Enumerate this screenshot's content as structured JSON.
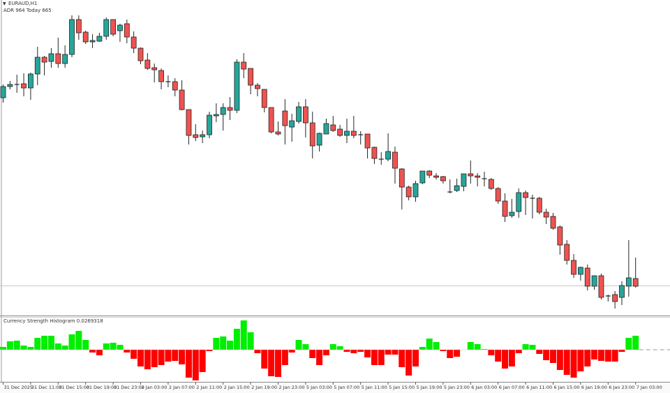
{
  "header": {
    "symbol": "EURAUD,H1",
    "adr_text": "ADR 964   Today 665"
  },
  "indicator": {
    "label": "Currency Strength Histogram 0.0269318"
  },
  "colors": {
    "bull": "#26a69a",
    "bear": "#ef5350",
    "outline": "#222222",
    "hist_pos": "#00ee00",
    "hist_neg": "#ff0000",
    "grid": "#c8c8c8"
  },
  "chart_data": {
    "type": "candlestick",
    "symbol": "EURAUD",
    "timeframe": "H1",
    "x_labels": [
      "31 Dec 2025",
      "31 Dec 11:00",
      "31 Dec 15:00",
      "31 Dec 19:00",
      "31 Dec 23:00",
      "2 Jan 03:00",
      "2 Jan 07:00",
      "2 Jan 11:00",
      "2 Jan 15:00",
      "2 Jan 19:00",
      "2 Jan 23:00",
      "5 Jan 03:00",
      "5 Jan 07:00",
      "5 Jan 11:00",
      "5 Jan 15:00",
      "5 Jan 19:00",
      "5 Jan 23:00",
      "6 Jan 03:00",
      "6 Jan 07:00",
      "6 Jan 11:00",
      "6 Jan 15:00",
      "6 Jan 19:00",
      "6 Jan 23:00",
      "7 Jan 03:00"
    ],
    "bars_per_label": 4,
    "price_units": "relative",
    "ohlc": [
      [
        320,
        339,
        313,
        336
      ],
      [
        336,
        344,
        332,
        339
      ],
      [
        339,
        353,
        327,
        339
      ],
      [
        340,
        355,
        322,
        334
      ],
      [
        334,
        356,
        317,
        354
      ],
      [
        354,
        393,
        338,
        378
      ],
      [
        378,
        380,
        352,
        371
      ],
      [
        372,
        391,
        363,
        383
      ],
      [
        383,
        406,
        363,
        369
      ],
      [
        369,
        395,
        363,
        382
      ],
      [
        382,
        438,
        378,
        432
      ],
      [
        432,
        438,
        403,
        413
      ],
      [
        414,
        416,
        397,
        400
      ],
      [
        400,
        411,
        391,
        402
      ],
      [
        401,
        413,
        400,
        408
      ],
      [
        408,
        435,
        403,
        432
      ],
      [
        432,
        432,
        408,
        411
      ],
      [
        416,
        426,
        400,
        424
      ],
      [
        426,
        432,
        398,
        407
      ],
      [
        407,
        415,
        384,
        391
      ],
      [
        391,
        392,
        368,
        373
      ],
      [
        374,
        384,
        360,
        362
      ],
      [
        363,
        369,
        342,
        360
      ],
      [
        359,
        362,
        332,
        343
      ],
      [
        343,
        352,
        335,
        343
      ],
      [
        343,
        348,
        322,
        331
      ],
      [
        331,
        345,
        302,
        303
      ],
      [
        303,
        303,
        253,
        266
      ],
      [
        267,
        282,
        258,
        263
      ],
      [
        264,
        273,
        255,
        267
      ],
      [
        267,
        300,
        262,
        295
      ],
      [
        294,
        312,
        285,
        296
      ],
      [
        296,
        312,
        273,
        306
      ],
      [
        306,
        321,
        288,
        302
      ],
      [
        302,
        375,
        298,
        371
      ],
      [
        371,
        384,
        348,
        361
      ],
      [
        362,
        362,
        325,
        338
      ],
      [
        338,
        341,
        322,
        333
      ],
      [
        332,
        332,
        299,
        306
      ],
      [
        306,
        306,
        269,
        271
      ],
      [
        271,
        286,
        266,
        268
      ],
      [
        301,
        318,
        253,
        280
      ],
      [
        278,
        297,
        257,
        287
      ],
      [
        286,
        314,
        283,
        307
      ],
      [
        307,
        318,
        263,
        284
      ],
      [
        284,
        300,
        233,
        251
      ],
      [
        252,
        270,
        243,
        269
      ],
      [
        268,
        290,
        268,
        283
      ],
      [
        281,
        294,
        271,
        273
      ],
      [
        275,
        281,
        264,
        266
      ],
      [
        266,
        290,
        255,
        272
      ],
      [
        272,
        294,
        262,
        266
      ],
      [
        267,
        272,
        253,
        267
      ],
      [
        268,
        268,
        233,
        248
      ],
      [
        249,
        250,
        225,
        233
      ],
      [
        232,
        242,
        224,
        232
      ],
      [
        232,
        269,
        229,
        243
      ],
      [
        242,
        250,
        197,
        219
      ],
      [
        218,
        219,
        160,
        192
      ],
      [
        192,
        194,
        173,
        178
      ],
      [
        178,
        201,
        171,
        197
      ],
      [
        198,
        215,
        196,
        215
      ],
      [
        215,
        216,
        205,
        209
      ],
      [
        208,
        212,
        203,
        206
      ],
      [
        207,
        208,
        197,
        201
      ],
      [
        185,
        203,
        183,
        185
      ],
      [
        187,
        204,
        185,
        194
      ],
      [
        193,
        211,
        186,
        211
      ],
      [
        211,
        230,
        197,
        208
      ],
      [
        208,
        212,
        193,
        206
      ],
      [
        204,
        214,
        193,
        204
      ],
      [
        203,
        205,
        188,
        190
      ],
      [
        190,
        192,
        168,
        172
      ],
      [
        172,
        183,
        142,
        150
      ],
      [
        151,
        175,
        148,
        156
      ],
      [
        157,
        190,
        148,
        184
      ],
      [
        184,
        187,
        152,
        177
      ],
      [
        176,
        181,
        147,
        176
      ],
      [
        176,
        178,
        153,
        156
      ],
      [
        156,
        161,
        139,
        149
      ],
      [
        150,
        155,
        131,
        133
      ],
      [
        135,
        137,
        95,
        109
      ],
      [
        110,
        116,
        81,
        87
      ],
      [
        87,
        96,
        62,
        67
      ],
      [
        67,
        78,
        58,
        77
      ],
      [
        76,
        81,
        44,
        50
      ],
      [
        50,
        65,
        45,
        65
      ],
      [
        65,
        68,
        31,
        34
      ],
      [
        36,
        38,
        28,
        36
      ],
      [
        38,
        43,
        18,
        28
      ],
      [
        34,
        57,
        23,
        51
      ],
      [
        50,
        116,
        35,
        62
      ],
      [
        61,
        91,
        48,
        50
      ]
    ],
    "current_price_line": 51,
    "histogram": {
      "name": "Currency Strength Histogram",
      "last_value": 0.0269318,
      "values": [
        4,
        12,
        13,
        6,
        4,
        17,
        20,
        20,
        9,
        6,
        22,
        27,
        14,
        -4,
        -8,
        9,
        10,
        7,
        -4,
        -13,
        -24,
        -28,
        -25,
        -22,
        -17,
        -16,
        -21,
        -40,
        -44,
        -32,
        -2,
        17,
        19,
        13,
        30,
        42,
        25,
        -5,
        -27,
        -38,
        -39,
        -22,
        -4,
        14,
        8,
        -12,
        -22,
        -8,
        8,
        5,
        -3,
        -5,
        -3,
        -11,
        -22,
        -22,
        -7,
        -7,
        -25,
        -37,
        -24,
        4,
        16,
        11,
        -2,
        -12,
        -10,
        0,
        11,
        8,
        1,
        -8,
        -17,
        -27,
        -24,
        -5,
        8,
        7,
        -6,
        -15,
        -19,
        -29,
        -36,
        -40,
        -31,
        -24,
        -14,
        -16,
        -17,
        -17,
        -3,
        17,
        20
      ]
    }
  }
}
